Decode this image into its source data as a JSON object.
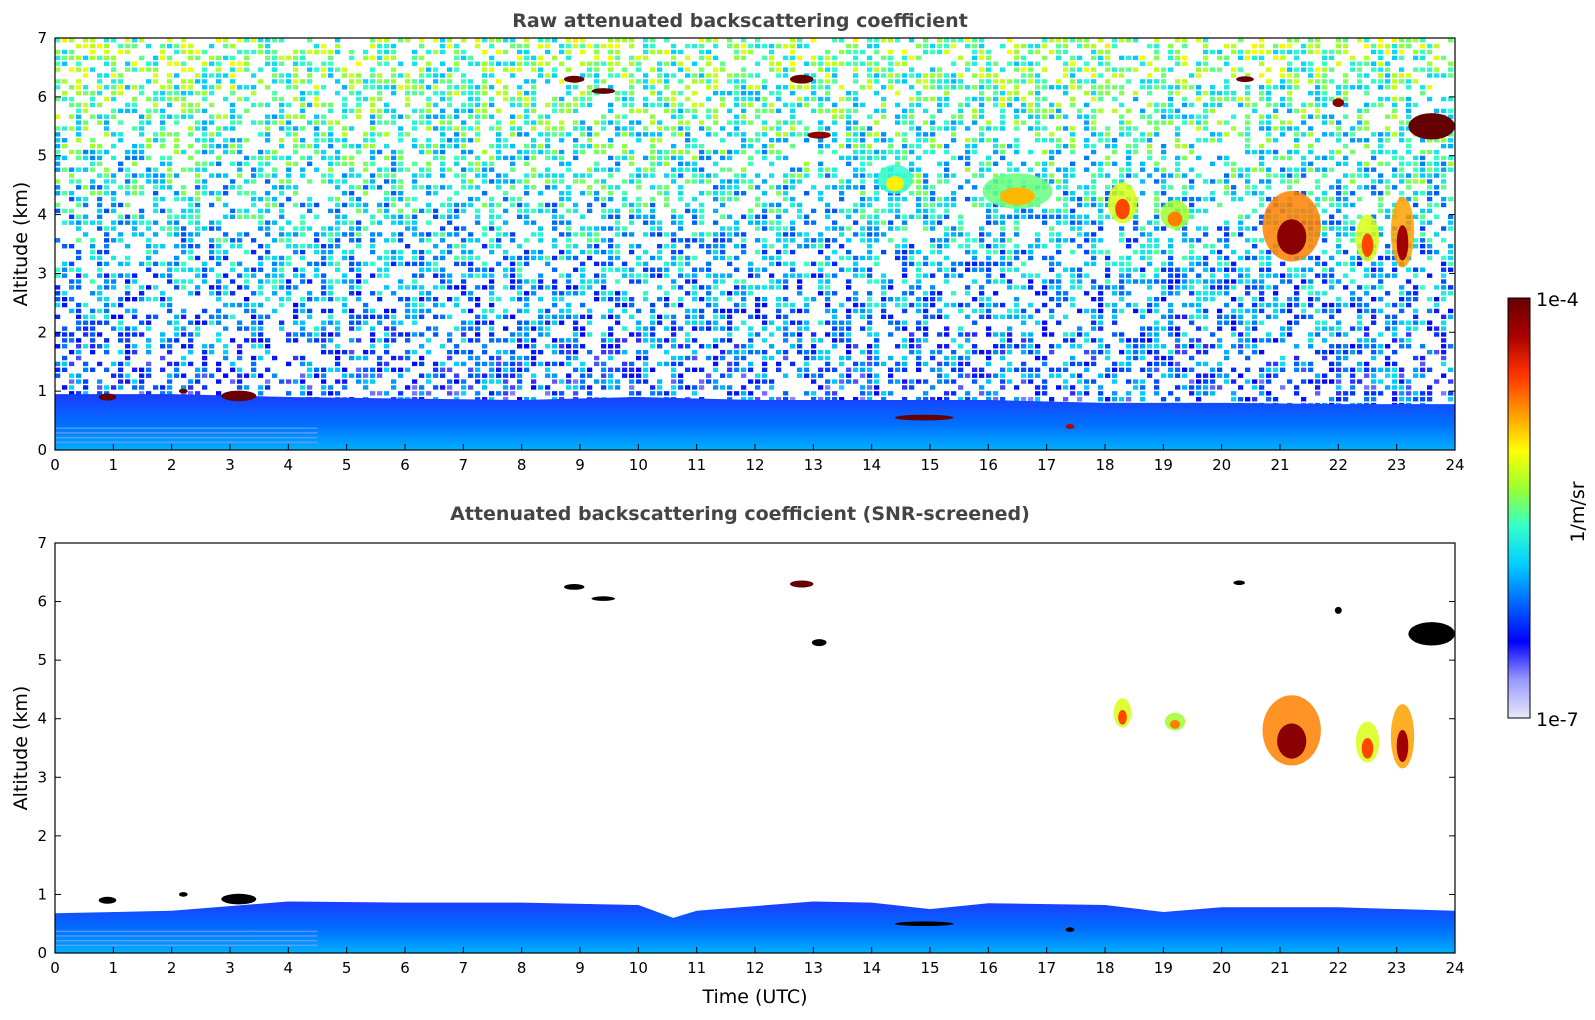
{
  "chart_data": [
    {
      "type": "heatmap",
      "title": "Raw attenuated backscattering coefficient",
      "xlabel": "",
      "ylabel": "Altitude (km)",
      "xlim": [
        0,
        24
      ],
      "ylim": [
        0,
        7
      ],
      "x_ticks": [
        0,
        1,
        2,
        3,
        4,
        5,
        6,
        7,
        8,
        9,
        10,
        11,
        12,
        13,
        14,
        15,
        16,
        17,
        18,
        19,
        20,
        21,
        22,
        23,
        24
      ],
      "y_ticks": [
        0,
        1,
        2,
        3,
        4,
        5,
        6,
        7
      ],
      "noise": true,
      "boundary_layer": [
        [
          0,
          0.95
        ],
        [
          2,
          0.95
        ],
        [
          4,
          0.9
        ],
        [
          8,
          0.85
        ],
        [
          10,
          0.9
        ],
        [
          12,
          0.85
        ],
        [
          14,
          0.85
        ],
        [
          16,
          0.85
        ],
        [
          18,
          0.8
        ],
        [
          20,
          0.8
        ],
        [
          22,
          0.78
        ],
        [
          24,
          0.78
        ]
      ],
      "features": [
        {
          "x": 0.9,
          "y": 0.9,
          "w": 0.3,
          "h": 0.12,
          "level": 1.0
        },
        {
          "x": 2.2,
          "y": 1.0,
          "w": 0.15,
          "h": 0.08,
          "level": 1.0
        },
        {
          "x": 3.15,
          "y": 0.92,
          "w": 0.6,
          "h": 0.18,
          "level": 1.0
        },
        {
          "x": 8.9,
          "y": 6.3,
          "w": 0.35,
          "h": 0.12,
          "level": 1.0
        },
        {
          "x": 9.4,
          "y": 6.1,
          "w": 0.4,
          "h": 0.1,
          "level": 1.0
        },
        {
          "x": 12.8,
          "y": 6.3,
          "w": 0.4,
          "h": 0.15,
          "level": 1.0
        },
        {
          "x": 13.1,
          "y": 5.35,
          "w": 0.4,
          "h": 0.12,
          "level": 0.95
        },
        {
          "x": 14.9,
          "y": 0.55,
          "w": 1.0,
          "h": 0.1,
          "level": 1.0
        },
        {
          "x": 17.4,
          "y": 0.4,
          "w": 0.15,
          "h": 0.08,
          "level": 0.9
        },
        {
          "x": 18.3,
          "y": 4.2,
          "w": 0.5,
          "h": 0.7,
          "level": 0.6
        },
        {
          "x": 19.2,
          "y": 4.0,
          "w": 0.5,
          "h": 0.5,
          "level": 0.55
        },
        {
          "x": 20.4,
          "y": 6.3,
          "w": 0.3,
          "h": 0.1,
          "level": 1.0
        },
        {
          "x": 21.2,
          "y": 3.8,
          "w": 1.0,
          "h": 1.2,
          "level": 0.75
        },
        {
          "x": 22.0,
          "y": 5.9,
          "w": 0.2,
          "h": 0.15,
          "level": 0.95
        },
        {
          "x": 22.5,
          "y": 3.6,
          "w": 0.4,
          "h": 0.8,
          "level": 0.6
        },
        {
          "x": 23.1,
          "y": 3.7,
          "w": 0.4,
          "h": 1.2,
          "level": 0.72
        },
        {
          "x": 23.6,
          "y": 5.5,
          "w": 0.8,
          "h": 0.45,
          "level": 1.0
        },
        {
          "x": 16.5,
          "y": 4.4,
          "w": 1.2,
          "h": 0.6,
          "level": 0.5
        },
        {
          "x": 14.4,
          "y": 4.6,
          "w": 0.6,
          "h": 0.5,
          "level": 0.45
        }
      ]
    },
    {
      "type": "heatmap",
      "title": "Attenuated backscattering coefficient (SNR-screened)",
      "xlabel": "Time (UTC)",
      "ylabel": "Altitude (km)",
      "xlim": [
        0,
        24
      ],
      "ylim": [
        0,
        7
      ],
      "x_ticks": [
        0,
        1,
        2,
        3,
        4,
        5,
        6,
        7,
        8,
        9,
        10,
        11,
        12,
        13,
        14,
        15,
        16,
        17,
        18,
        19,
        20,
        21,
        22,
        23,
        24
      ],
      "y_ticks": [
        0,
        1,
        2,
        3,
        4,
        5,
        6,
        7
      ],
      "noise": false,
      "boundary_layer": [
        [
          0,
          0.68
        ],
        [
          2,
          0.72
        ],
        [
          4,
          0.88
        ],
        [
          6,
          0.86
        ],
        [
          8,
          0.86
        ],
        [
          10,
          0.82
        ],
        [
          10.6,
          0.6
        ],
        [
          11,
          0.72
        ],
        [
          12,
          0.8
        ],
        [
          13,
          0.88
        ],
        [
          14,
          0.86
        ],
        [
          15,
          0.75
        ],
        [
          16,
          0.85
        ],
        [
          18,
          0.82
        ],
        [
          19,
          0.7
        ],
        [
          20,
          0.78
        ],
        [
          22,
          0.78
        ],
        [
          24,
          0.72
        ]
      ],
      "features": [
        {
          "x": 0.9,
          "y": 0.9,
          "w": 0.3,
          "h": 0.12,
          "level": 1.2
        },
        {
          "x": 2.2,
          "y": 1.0,
          "w": 0.15,
          "h": 0.08,
          "level": 1.2
        },
        {
          "x": 3.15,
          "y": 0.92,
          "w": 0.6,
          "h": 0.18,
          "level": 1.2
        },
        {
          "x": 8.9,
          "y": 6.25,
          "w": 0.35,
          "h": 0.1,
          "level": 1.2
        },
        {
          "x": 9.4,
          "y": 6.05,
          "w": 0.4,
          "h": 0.08,
          "level": 1.2
        },
        {
          "x": 12.8,
          "y": 6.3,
          "w": 0.4,
          "h": 0.12,
          "level": 1.0
        },
        {
          "x": 13.1,
          "y": 5.3,
          "w": 0.25,
          "h": 0.12,
          "level": 1.2
        },
        {
          "x": 14.9,
          "y": 0.5,
          "w": 1.0,
          "h": 0.08,
          "level": 1.2
        },
        {
          "x": 17.4,
          "y": 0.4,
          "w": 0.15,
          "h": 0.08,
          "level": 1.2
        },
        {
          "x": 18.3,
          "y": 4.1,
          "w": 0.3,
          "h": 0.5,
          "level": 0.6
        },
        {
          "x": 19.2,
          "y": 3.95,
          "w": 0.35,
          "h": 0.3,
          "level": 0.55
        },
        {
          "x": 20.3,
          "y": 6.32,
          "w": 0.2,
          "h": 0.08,
          "level": 1.2
        },
        {
          "x": 21.2,
          "y": 3.8,
          "w": 1.0,
          "h": 1.2,
          "level": 0.75
        },
        {
          "x": 22.0,
          "y": 5.85,
          "w": 0.12,
          "h": 0.12,
          "level": 1.2
        },
        {
          "x": 22.5,
          "y": 3.6,
          "w": 0.4,
          "h": 0.7,
          "level": 0.6
        },
        {
          "x": 23.1,
          "y": 3.7,
          "w": 0.4,
          "h": 1.1,
          "level": 0.72
        },
        {
          "x": 23.6,
          "y": 5.45,
          "w": 0.8,
          "h": 0.4,
          "level": 1.2
        }
      ]
    }
  ],
  "colorbar": {
    "label": "1/m/sr",
    "max_label": "1e-4",
    "min_label": "1e-7",
    "stops": [
      "#e8e8f8",
      "#9999ff",
      "#0000ff",
      "#0066ff",
      "#00ccff",
      "#33ffcc",
      "#99ff33",
      "#ffff00",
      "#ff9900",
      "#ff3300",
      "#aa0000",
      "#660000"
    ]
  }
}
